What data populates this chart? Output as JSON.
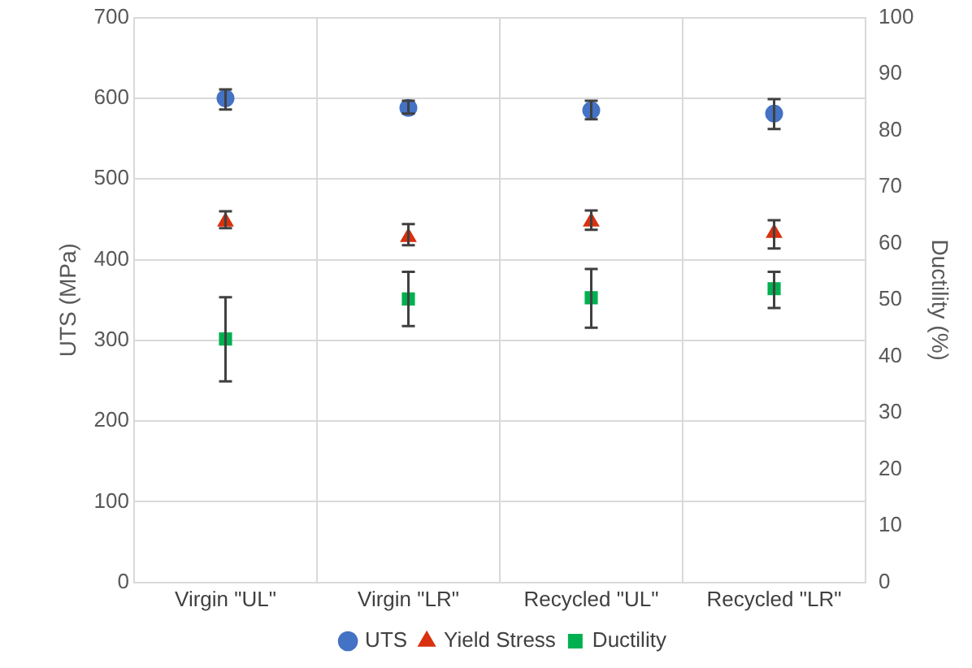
{
  "chart_data": {
    "type": "scatter",
    "ylabel": "UTS (MPa)",
    "y2label": "Ductility (%)",
    "categories": [
      "Virgin \"UL\"",
      "Virgin \"LR\"",
      "Recycled \"UL\"",
      "Recycled \"LR\""
    ],
    "series": [
      {
        "name": "UTS",
        "color": "#4472c4",
        "marker": "circle",
        "values": [
          600,
          588,
          585,
          581
        ],
        "errors": [
          [
            586,
            611
          ],
          [
            581,
            597
          ],
          [
            574,
            597
          ],
          [
            562,
            599
          ]
        ]
      },
      {
        "name": "Yield Stress",
        "color": "#d9310f",
        "marker": "triangle",
        "values": [
          447,
          428,
          447,
          433
        ],
        "errors": [
          [
            439,
            460
          ],
          [
            418,
            444
          ],
          [
            437,
            461
          ],
          [
            414,
            449
          ]
        ]
      },
      {
        "name": "Ductility",
        "color": "#00b050",
        "marker": "square",
        "axis": "y2",
        "values": [
          43.1,
          50.2,
          50.4,
          52.0
        ],
        "errors": [
          [
            35.6,
            50.5
          ],
          [
            45.4,
            55.0
          ],
          [
            45.1,
            55.5
          ],
          [
            48.6,
            55.0
          ]
        ]
      }
    ],
    "ylim": [
      0,
      700
    ],
    "yticks": [
      0,
      100,
      200,
      300,
      400,
      500,
      600,
      700
    ],
    "y2lim": [
      0,
      100
    ],
    "y2ticks": [
      0,
      10,
      20,
      30,
      40,
      50,
      60,
      70,
      80,
      90,
      100
    ],
    "grid": true,
    "legend": "bottom"
  }
}
